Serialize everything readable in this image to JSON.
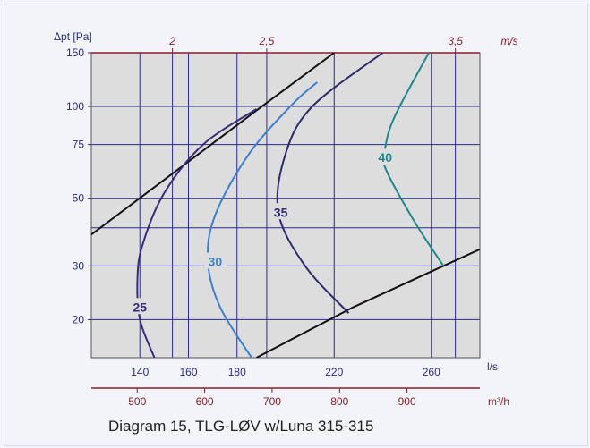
{
  "chart_data": {
    "type": "line",
    "ylabel": "Δpt [Pa]",
    "y_scale": "log",
    "y_ticks": [
      20,
      30,
      50,
      75,
      100,
      150
    ],
    "ylim": [
      15,
      150
    ],
    "x_bottom": {
      "unit": "l/s",
      "ticks": [
        140,
        160,
        180,
        220,
        260
      ],
      "range": [
        120,
        280
      ]
    },
    "x_bottom2": {
      "unit": "m³/h",
      "ticks": [
        500,
        600,
        700,
        800,
        900
      ],
      "range": [
        432,
        1008
      ]
    },
    "x_top": {
      "unit": "m/s",
      "ticks": [
        "2",
        "2,5",
        "3,5"
      ],
      "tick_values": [
        2,
        2.5,
        3.5
      ],
      "range": [
        1.57,
        3.63
      ]
    },
    "bounds": [
      {
        "points": [
          [
            120,
            38
          ],
          [
            188,
            97
          ],
          [
            220,
            150
          ]
        ]
      },
      {
        "points": [
          [
            188,
            15
          ],
          [
            228,
            22
          ],
          [
            280,
            34
          ]
        ]
      }
    ],
    "series": [
      {
        "name": "25",
        "color": "#3a2a7a",
        "label_at": [
          140,
          22
        ],
        "points": [
          [
            146,
            15
          ],
          [
            140,
            20
          ],
          [
            139,
            27
          ],
          [
            141,
            35
          ],
          [
            150,
            52
          ],
          [
            166,
            75
          ],
          [
            188,
            98
          ]
        ]
      },
      {
        "name": "30",
        "color": "#3a7fd0",
        "label_at": [
          171,
          31
        ],
        "points": [
          [
            186,
            15
          ],
          [
            173,
            22
          ],
          [
            168,
            31
          ],
          [
            171,
            44
          ],
          [
            185,
            70
          ],
          [
            203,
            102
          ],
          [
            213,
            120
          ]
        ]
      },
      {
        "name": "35",
        "color": "#2e2a6e",
        "label_at": [
          198,
          45
        ],
        "points": [
          [
            226,
            21
          ],
          [
            208,
            30
          ],
          [
            197,
            45
          ],
          [
            200,
            70
          ],
          [
            211,
            100
          ],
          [
            240,
            150
          ]
        ]
      },
      {
        "name": "40",
        "color": "#1a8a8a",
        "label_at": [
          241,
          68
        ],
        "points": [
          [
            265,
            30
          ],
          [
            253,
            42
          ],
          [
            241,
            63
          ],
          [
            241,
            73
          ],
          [
            245,
            93
          ],
          [
            259,
            150
          ]
        ]
      }
    ]
  },
  "caption": "Diagram 15, TLG-LØV w/Luna  315-315"
}
